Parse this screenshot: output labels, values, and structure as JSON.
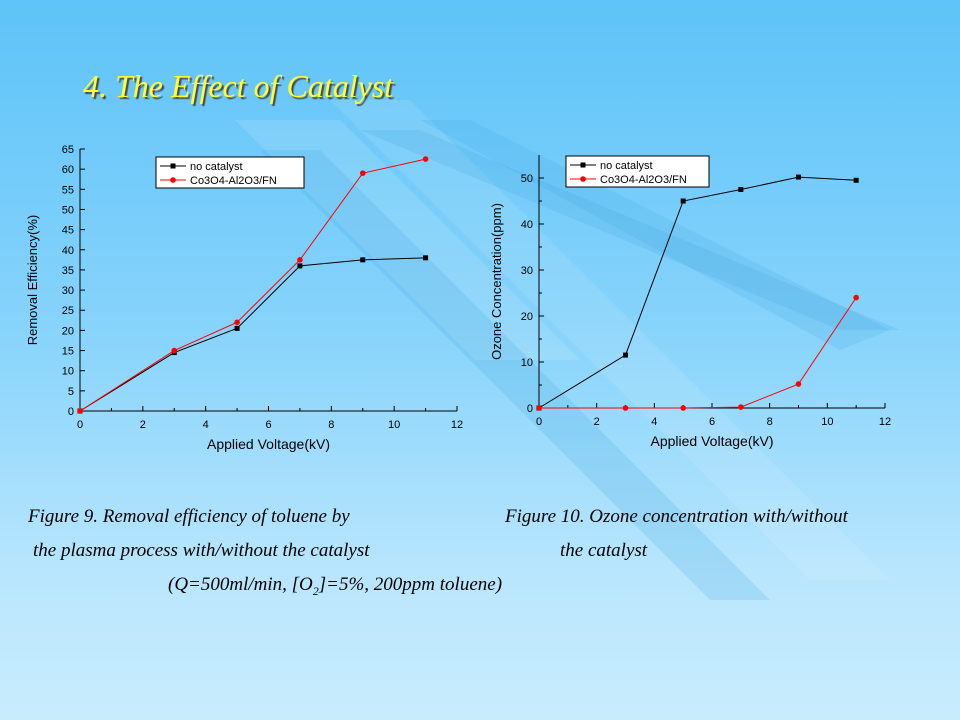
{
  "slide": {
    "title": "4. The Effect of Catalyst",
    "background_color": "#7fcffa",
    "title_color": "#ffff33"
  },
  "captions": {
    "fig9_line1": "Figure 9. Removal efficiency of toluene by",
    "fig9_line2": "the plasma process with/without the catalyst",
    "fig10_line1": "Figure 10. Ozone concentration with/without",
    "fig10_line2": "the catalyst",
    "conditions_prefix": "(Q=500ml/min, [O",
    "conditions_sub": "2",
    "conditions_suffix": "]=5%, 200ppm toluene)"
  },
  "chart_data": [
    {
      "type": "line",
      "xlabel": "Applied Voltage(kV)",
      "ylabel": "Removal Efficiency(%)",
      "xlim": [
        0,
        12
      ],
      "ylim": [
        0,
        65
      ],
      "xticks": [
        0,
        2,
        4,
        6,
        8,
        10,
        12
      ],
      "yticks": [
        0,
        5,
        10,
        15,
        20,
        25,
        30,
        35,
        40,
        45,
        50,
        55,
        60,
        65
      ],
      "grid": false,
      "legend_position": "top-center",
      "series": [
        {
          "name": "no catalyst",
          "color": "#000000",
          "marker": "square",
          "x": [
            0,
            3,
            5,
            7,
            9,
            11
          ],
          "y": [
            0,
            14.5,
            20.5,
            36,
            37.5,
            38
          ]
        },
        {
          "name": "Co3O4-Al2O3/FN",
          "color": "#ff0000",
          "marker": "circle",
          "x": [
            0,
            3,
            5,
            7,
            9,
            11
          ],
          "y": [
            0,
            15,
            22,
            37.5,
            59,
            62.5
          ]
        }
      ]
    },
    {
      "type": "line",
      "xlabel": "Applied Voltage(kV)",
      "ylabel": "Ozone Concentration(ppm)",
      "xlim": [
        0,
        12
      ],
      "ylim": [
        0,
        55
      ],
      "xticks": [
        0,
        2,
        4,
        6,
        8,
        10,
        12
      ],
      "yticks": [
        0,
        10,
        20,
        30,
        40,
        50
      ],
      "grid": false,
      "legend_position": "top-center",
      "series": [
        {
          "name": "no catalyst",
          "color": "#000000",
          "marker": "square",
          "x": [
            0,
            3,
            5,
            7,
            9,
            11
          ],
          "y": [
            0,
            11.5,
            45,
            47.5,
            50.2,
            49.5
          ]
        },
        {
          "name": "Co3O4-Al2O3/FN",
          "color": "#ff0000",
          "marker": "circle",
          "x": [
            0,
            3,
            5,
            7,
            9,
            11
          ],
          "y": [
            0,
            0,
            0,
            0.2,
            5.2,
            24
          ]
        }
      ]
    }
  ]
}
